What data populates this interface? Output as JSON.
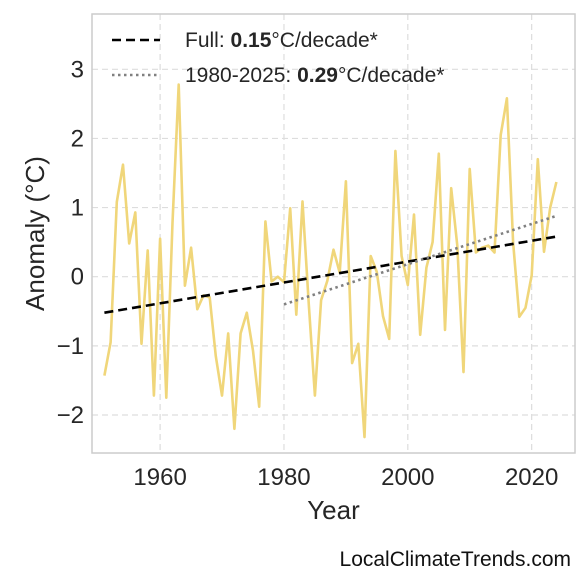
{
  "chart_data": {
    "type": "line",
    "xlabel": "Year",
    "ylabel": "Anomaly (°C)",
    "xlim": [
      1949,
      2027
    ],
    "ylim": [
      -2.55,
      3.8
    ],
    "xticks": [
      1960,
      1980,
      2000,
      2020
    ],
    "yticks": [
      -2,
      -1,
      0,
      1,
      2,
      3
    ],
    "ytick_labels": [
      "−2",
      "−1",
      "0",
      "1",
      "2",
      "3"
    ],
    "grid": true,
    "legend_position": "top-left",
    "series": [
      {
        "style": "line",
        "color": "#f0d67a",
        "x": [
          1951,
          1952,
          1953,
          1954,
          1955,
          1956,
          1957,
          1958,
          1959,
          1960,
          1961,
          1962,
          1963,
          1964,
          1965,
          1966,
          1967,
          1968,
          1969,
          1970,
          1971,
          1972,
          1973,
          1974,
          1975,
          1976,
          1977,
          1978,
          1979,
          1980,
          1981,
          1982,
          1983,
          1984,
          1985,
          1986,
          1987,
          1988,
          1989,
          1990,
          1991,
          1992,
          1993,
          1994,
          1995,
          1996,
          1997,
          1998,
          1999,
          2000,
          2001,
          2002,
          2003,
          2004,
          2005,
          2006,
          2007,
          2008,
          2009,
          2010,
          2011,
          2012,
          2013,
          2014,
          2015,
          2016,
          2017,
          2018,
          2019,
          2020,
          2021,
          2022,
          2023,
          2024
        ],
        "y": [
          -1.43,
          -0.95,
          1.08,
          1.62,
          0.48,
          0.93,
          -0.97,
          0.38,
          -1.72,
          0.55,
          -1.75,
          0.78,
          2.78,
          -0.13,
          0.42,
          -0.47,
          -0.27,
          -0.3,
          -1.15,
          -1.72,
          -0.82,
          -2.2,
          -0.82,
          -0.52,
          -1.07,
          -1.88,
          0.8,
          -0.07,
          0.0,
          -0.08,
          0.99,
          -0.55,
          1.09,
          -0.38,
          -1.72,
          -0.34,
          -0.06,
          0.39,
          0.06,
          1.38,
          -1.25,
          -0.97,
          -2.32,
          0.3,
          0.07,
          -0.57,
          -0.9,
          1.82,
          0.3,
          -0.12,
          0.9,
          -0.84,
          0.13,
          0.5,
          1.78,
          -0.77,
          1.28,
          0.45,
          -1.38,
          1.56,
          0.35,
          0.42,
          0.45,
          0.35,
          2.05,
          2.58,
          0.5,
          -0.58,
          -0.45,
          0.02,
          1.7,
          0.36,
          1.0,
          1.37
        ]
      },
      {
        "name": "Full",
        "style": "dashed",
        "color": "#000000",
        "x": [
          1951,
          2024
        ],
        "y": [
          -0.52,
          0.58
        ]
      },
      {
        "name": "1980-2025",
        "style": "dotted",
        "color": "#808080",
        "x": [
          1980,
          2024
        ],
        "y": [
          -0.4,
          0.88
        ]
      }
    ],
    "legend": [
      {
        "prefix": "Full: ",
        "value": "0.15",
        "suffix": "°C/decade*",
        "style": "dashed",
        "color": "#000000"
      },
      {
        "prefix": "1980-2025: ",
        "value": "0.29",
        "suffix": "°C/decade*",
        "style": "dotted",
        "color": "#808080"
      }
    ]
  },
  "credit": "LocalClimateTrends.com"
}
